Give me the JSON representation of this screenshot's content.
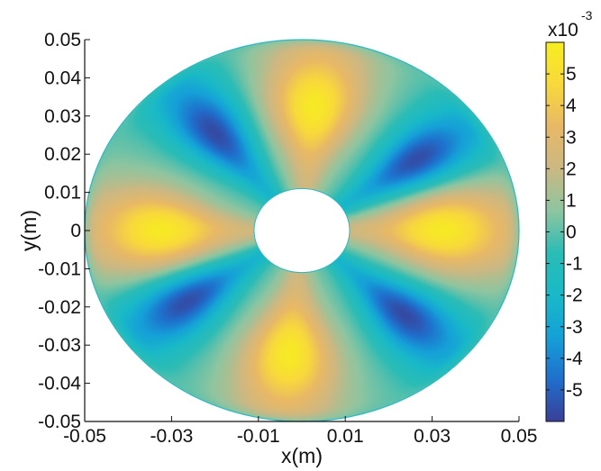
{
  "chart_data": {
    "type": "heatmap",
    "title": "",
    "xlabel": "x(m)",
    "ylabel": "y(m)",
    "xlim": [
      -0.05,
      0.05
    ],
    "ylim": [
      -0.05,
      0.05
    ],
    "x_ticks": [
      "-0.05",
      "-0.03",
      "-0.01",
      "0.01",
      "0.03",
      "0.05"
    ],
    "y_ticks": [
      "0.05",
      "0.04",
      "0.03",
      "0.02",
      "0.01",
      "0",
      "-0.01",
      "-0.02",
      "-0.03",
      "-0.04",
      "-0.05"
    ],
    "grid": false,
    "domain": {
      "shape": "annulus",
      "outer_radius_m": 0.05,
      "inner_radius_m": 0.011
    },
    "pattern": {
      "sectors": 8,
      "positive_peak_angles_deg": [
        0,
        85,
        180,
        265
      ],
      "negative_peak_angles_deg": [
        35,
        128,
        215,
        317
      ],
      "peak_magnitude": 0.0057,
      "value_scale": 0.001
    },
    "colorbar": {
      "exponent_label": "x10",
      "exponent": "-3",
      "tick_labels": [
        "5",
        "4",
        "3",
        "2",
        "1",
        "0",
        "-1",
        "-2",
        "-3",
        "-4",
        "-5"
      ],
      "range": [
        -6,
        6
      ],
      "colors": [
        "#3a3f98",
        "#1f6fcc",
        "#15a0d8",
        "#19b9c8",
        "#2bbcb5",
        "#8ec5a0",
        "#cbb883",
        "#e8b866",
        "#f8d83c",
        "#f7ee1f"
      ]
    }
  }
}
